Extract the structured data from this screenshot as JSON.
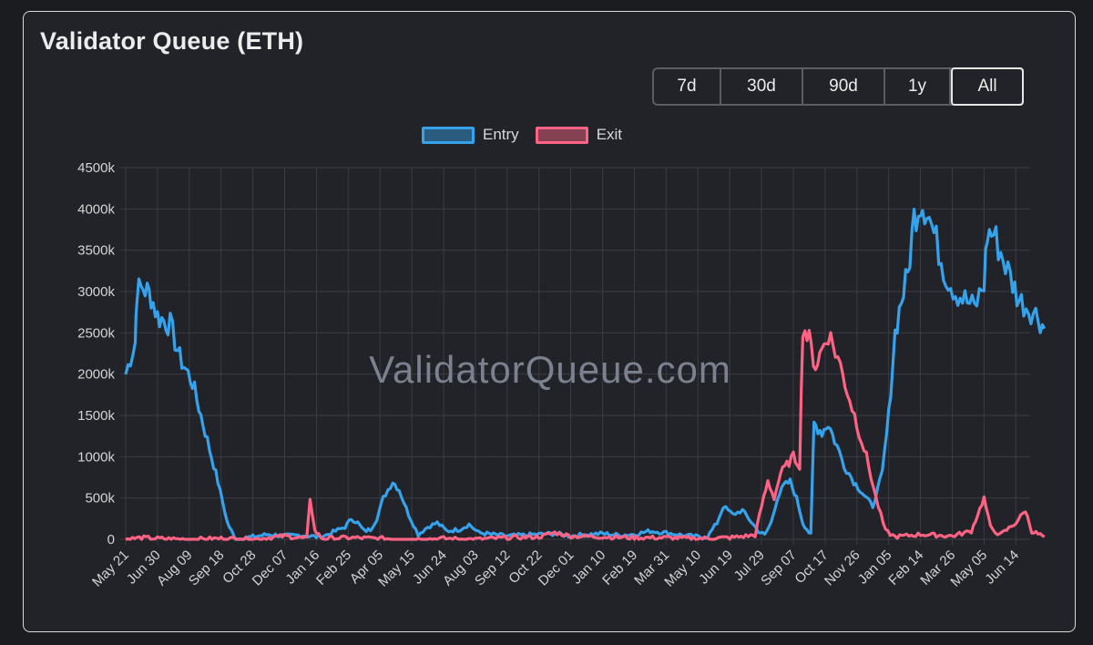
{
  "card": {
    "title": "Validator Queue (ETH)"
  },
  "ranges": [
    {
      "label": "7d",
      "active": false
    },
    {
      "label": "30d",
      "active": false
    },
    {
      "label": "90d",
      "active": false
    },
    {
      "label": "1y",
      "active": false
    },
    {
      "label": "All",
      "active": true
    }
  ],
  "watermark": "ValidatorQueue.com",
  "colors": {
    "entry": "#36a2eb",
    "exit": "#ff6384",
    "background": "#212328",
    "grid": "#3a3c42"
  },
  "chart_data": {
    "type": "line",
    "title": "Validator Queue (ETH)",
    "legend": {
      "position": "top",
      "entries": [
        "Entry",
        "Exit"
      ]
    },
    "grid": true,
    "ylim": [
      0,
      4500000
    ],
    "y_ticks": [
      "0",
      "500k",
      "1000k",
      "1500k",
      "2000k",
      "2500k",
      "3000k",
      "3500k",
      "4000k",
      "4500k"
    ],
    "x_tick_labels": [
      "May 21",
      "Jun 30",
      "Aug 09",
      "Sep 18",
      "Oct 28",
      "Dec 07",
      "Jan 16",
      "Feb 25",
      "Apr 05",
      "May 15",
      "Jun 24",
      "Aug 03",
      "Sep 12",
      "Oct 22",
      "Dec 01",
      "Jan 10",
      "Feb 19",
      "Mar 31",
      "May 10",
      "Jun 19",
      "Jul 29",
      "Sep 07",
      "Oct 17",
      "Nov 26",
      "Jan 05",
      "Feb 14",
      "Mar 26",
      "May 05",
      "Jun 14"
    ],
    "x_index": [
      0,
      1,
      2,
      3,
      4,
      5,
      6,
      7,
      8,
      9,
      10,
      11,
      12,
      13,
      14,
      15,
      16,
      17,
      18,
      19,
      20,
      21,
      22,
      23,
      24,
      25,
      26,
      27,
      28
    ],
    "series": [
      {
        "name": "Entry",
        "points": [
          [
            0,
            2000000
          ],
          [
            0.3,
            2400000
          ],
          [
            0.35,
            3000000
          ],
          [
            0.55,
            3050000
          ],
          [
            0.8,
            2950000
          ],
          [
            1.0,
            2700000
          ],
          [
            1.4,
            2600000
          ],
          [
            1.7,
            2200000
          ],
          [
            2.1,
            1900000
          ],
          [
            2.5,
            1300000
          ],
          [
            2.9,
            700000
          ],
          [
            3.2,
            200000
          ],
          [
            3.45,
            0
          ],
          [
            4.0,
            30000
          ],
          [
            4.5,
            60000
          ],
          [
            5.0,
            40000
          ],
          [
            5.5,
            50000
          ],
          [
            6.0,
            30000
          ],
          [
            6.3,
            50000
          ],
          [
            6.6,
            100000
          ],
          [
            6.9,
            150000
          ],
          [
            7.1,
            250000
          ],
          [
            7.3,
            200000
          ],
          [
            7.5,
            100000
          ],
          [
            7.7,
            120000
          ],
          [
            7.9,
            250000
          ],
          [
            8.1,
            500000
          ],
          [
            8.4,
            700000
          ],
          [
            8.6,
            600000
          ],
          [
            8.9,
            300000
          ],
          [
            9.2,
            60000
          ],
          [
            9.5,
            150000
          ],
          [
            9.8,
            200000
          ],
          [
            10.1,
            100000
          ],
          [
            10.5,
            120000
          ],
          [
            10.8,
            180000
          ],
          [
            11.1,
            80000
          ],
          [
            11.5,
            60000
          ],
          [
            12.0,
            40000
          ],
          [
            12.5,
            50000
          ],
          [
            13.0,
            60000
          ],
          [
            13.5,
            70000
          ],
          [
            14.0,
            40000
          ],
          [
            14.5,
            60000
          ],
          [
            15.0,
            70000
          ],
          [
            15.5,
            50000
          ],
          [
            16.0,
            60000
          ],
          [
            16.5,
            100000
          ],
          [
            17.0,
            80000
          ],
          [
            17.5,
            50000
          ],
          [
            18.0,
            30000
          ],
          [
            18.3,
            30000
          ],
          [
            18.6,
            200000
          ],
          [
            18.8,
            400000
          ],
          [
            19.1,
            300000
          ],
          [
            19.4,
            350000
          ],
          [
            19.6,
            250000
          ],
          [
            19.9,
            100000
          ],
          [
            20.1,
            50000
          ],
          [
            20.3,
            200000
          ],
          [
            20.5,
            500000
          ],
          [
            20.7,
            650000
          ],
          [
            20.9,
            700000
          ],
          [
            21.1,
            500000
          ],
          [
            21.3,
            200000
          ],
          [
            21.55,
            50000
          ],
          [
            21.65,
            1400000
          ],
          [
            21.9,
            1300000
          ],
          [
            22.1,
            1400000
          ],
          [
            22.3,
            1200000
          ],
          [
            22.6,
            900000
          ],
          [
            22.9,
            700000
          ],
          [
            23.1,
            600000
          ],
          [
            23.3,
            500000
          ],
          [
            23.5,
            400000
          ],
          [
            23.8,
            800000
          ],
          [
            24.0,
            1500000
          ],
          [
            24.2,
            2500000
          ],
          [
            24.4,
            2900000
          ],
          [
            24.6,
            3200000
          ],
          [
            24.8,
            3900000
          ],
          [
            25.0,
            4100000
          ],
          [
            25.2,
            4000000
          ],
          [
            25.5,
            3600000
          ],
          [
            25.8,
            3200000
          ],
          [
            26.1,
            3000000
          ],
          [
            26.4,
            2900000
          ],
          [
            26.7,
            2800000
          ],
          [
            27.0,
            3100000
          ],
          [
            27.1,
            3700000
          ],
          [
            27.3,
            3700000
          ],
          [
            27.6,
            3400000
          ],
          [
            27.9,
            3100000
          ],
          [
            28.1,
            2900000
          ],
          [
            28.4,
            2800000
          ],
          [
            28.7,
            2700000
          ],
          [
            28.9,
            2550000
          ]
        ]
      },
      {
        "name": "Exit",
        "points": [
          [
            0,
            0
          ],
          [
            0.5,
            20000
          ],
          [
            1.0,
            10000
          ],
          [
            2.0,
            0
          ],
          [
            3.0,
            10000
          ],
          [
            4.0,
            0
          ],
          [
            5.0,
            40000
          ],
          [
            5.7,
            10000
          ],
          [
            5.8,
            500000
          ],
          [
            5.95,
            100000
          ],
          [
            6.2,
            10000
          ],
          [
            7.0,
            20000
          ],
          [
            8.0,
            10000
          ],
          [
            9.0,
            0
          ],
          [
            10.0,
            10000
          ],
          [
            11.0,
            0
          ],
          [
            12.0,
            20000
          ],
          [
            13.0,
            30000
          ],
          [
            13.5,
            80000
          ],
          [
            14.0,
            40000
          ],
          [
            15.0,
            30000
          ],
          [
            16.0,
            20000
          ],
          [
            17.0,
            20000
          ],
          [
            18.0,
            10000
          ],
          [
            19.0,
            20000
          ],
          [
            19.8,
            50000
          ],
          [
            20.0,
            400000
          ],
          [
            20.2,
            700000
          ],
          [
            20.4,
            500000
          ],
          [
            20.6,
            800000
          ],
          [
            20.8,
            900000
          ],
          [
            21.0,
            1000000
          ],
          [
            21.2,
            900000
          ],
          [
            21.3,
            2600000
          ],
          [
            21.5,
            2400000
          ],
          [
            21.7,
            2100000
          ],
          [
            21.9,
            2300000
          ],
          [
            22.1,
            2500000
          ],
          [
            22.4,
            2200000
          ],
          [
            22.7,
            1800000
          ],
          [
            23.0,
            1400000
          ],
          [
            23.3,
            1000000
          ],
          [
            23.6,
            500000
          ],
          [
            23.9,
            100000
          ],
          [
            24.2,
            30000
          ],
          [
            25.0,
            60000
          ],
          [
            26.0,
            40000
          ],
          [
            26.6,
            100000
          ],
          [
            27.0,
            500000
          ],
          [
            27.2,
            150000
          ],
          [
            27.5,
            50000
          ],
          [
            28.0,
            200000
          ],
          [
            28.3,
            350000
          ],
          [
            28.5,
            100000
          ],
          [
            28.9,
            30000
          ]
        ]
      }
    ]
  }
}
